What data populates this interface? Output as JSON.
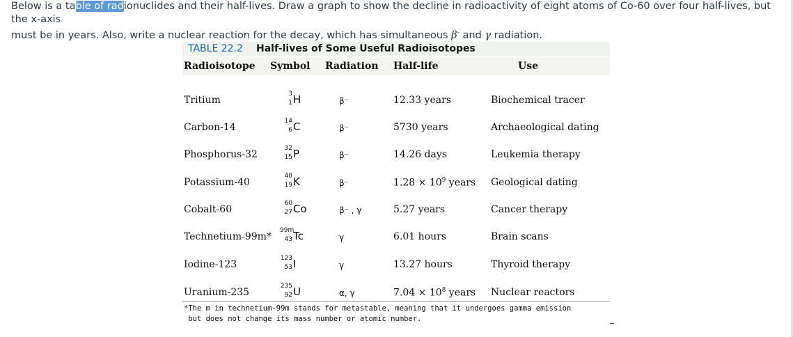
{
  "question": {
    "line1_pre": "Below is a ta",
    "line1_highlight": "ble of rad",
    "line1_post": "ionuclides and their half-lives. Draw a graph to show the decline in radioactivity of eight atoms of Co-60 over four half-lives, but the x-axis",
    "line2_pre": "must be in years. Also, write a nuclear reaction for the decay, which has simultaneous ",
    "beta_symbol": "β",
    "beta_charge": "-",
    "line2_mid": " and ",
    "gamma_symbol": "γ",
    "line2_post": " radiation."
  },
  "table": {
    "caption_number": "TABLE 22.2",
    "caption_title": "Half-lives of Some Useful Radioisotopes",
    "headers": [
      "Radioisotope",
      "Symbol",
      "Radiation",
      "Half-life",
      "Use"
    ],
    "rows": [
      {
        "name": "Tritium",
        "mass": "3",
        "atomic": "1",
        "element": "H",
        "radiation": "β⁻",
        "half_life": "12.33 years",
        "use": "Biochemical tracer"
      },
      {
        "name": "Carbon-14",
        "mass": "14",
        "atomic": "6",
        "element": "C",
        "radiation": "β⁻",
        "half_life": "5730 years",
        "use": "Archaeological dating"
      },
      {
        "name": "Phosphorus-32",
        "mass": "32",
        "atomic": "15",
        "element": "P",
        "radiation": "β⁻",
        "half_life": "14.26 days",
        "use": "Leukemia therapy"
      },
      {
        "name": "Potassium-40",
        "mass": "40",
        "atomic": "19",
        "element": "K",
        "radiation": "β⁻",
        "half_life_base": "1.28 × 10",
        "half_life_exp": "9",
        "half_life_unit": " years",
        "use": "Geological dating"
      },
      {
        "name": "Cobalt-60",
        "mass": "60",
        "atomic": "27",
        "element": "Co",
        "radiation": "β⁻ , γ",
        "half_life": "5.27 years",
        "use": "Cancer therapy"
      },
      {
        "name": "Technetium-99m*",
        "mass": "99m",
        "atomic": "43",
        "element": "Tc",
        "radiation": "γ",
        "half_life": "6.01 hours",
        "use": "Brain scans"
      },
      {
        "name": "Iodine-123",
        "mass": "123",
        "atomic": "53",
        "element": "I",
        "radiation": "γ",
        "half_life": "13.27 hours",
        "use": "Thyroid therapy"
      },
      {
        "name": "Uranium-235",
        "mass": "235",
        "atomic": "92",
        "element": "U",
        "radiation": "α, γ",
        "half_life_base": "7.04 × 10",
        "half_life_exp": "8",
        "half_life_unit": " years",
        "use": "Nuclear reactors"
      }
    ],
    "footnote_line1": "*The m in technetium-99m stands for metastable, meaning that it undergoes gamma emission",
    "footnote_line2": " but does not change its mass number or atomic number."
  }
}
